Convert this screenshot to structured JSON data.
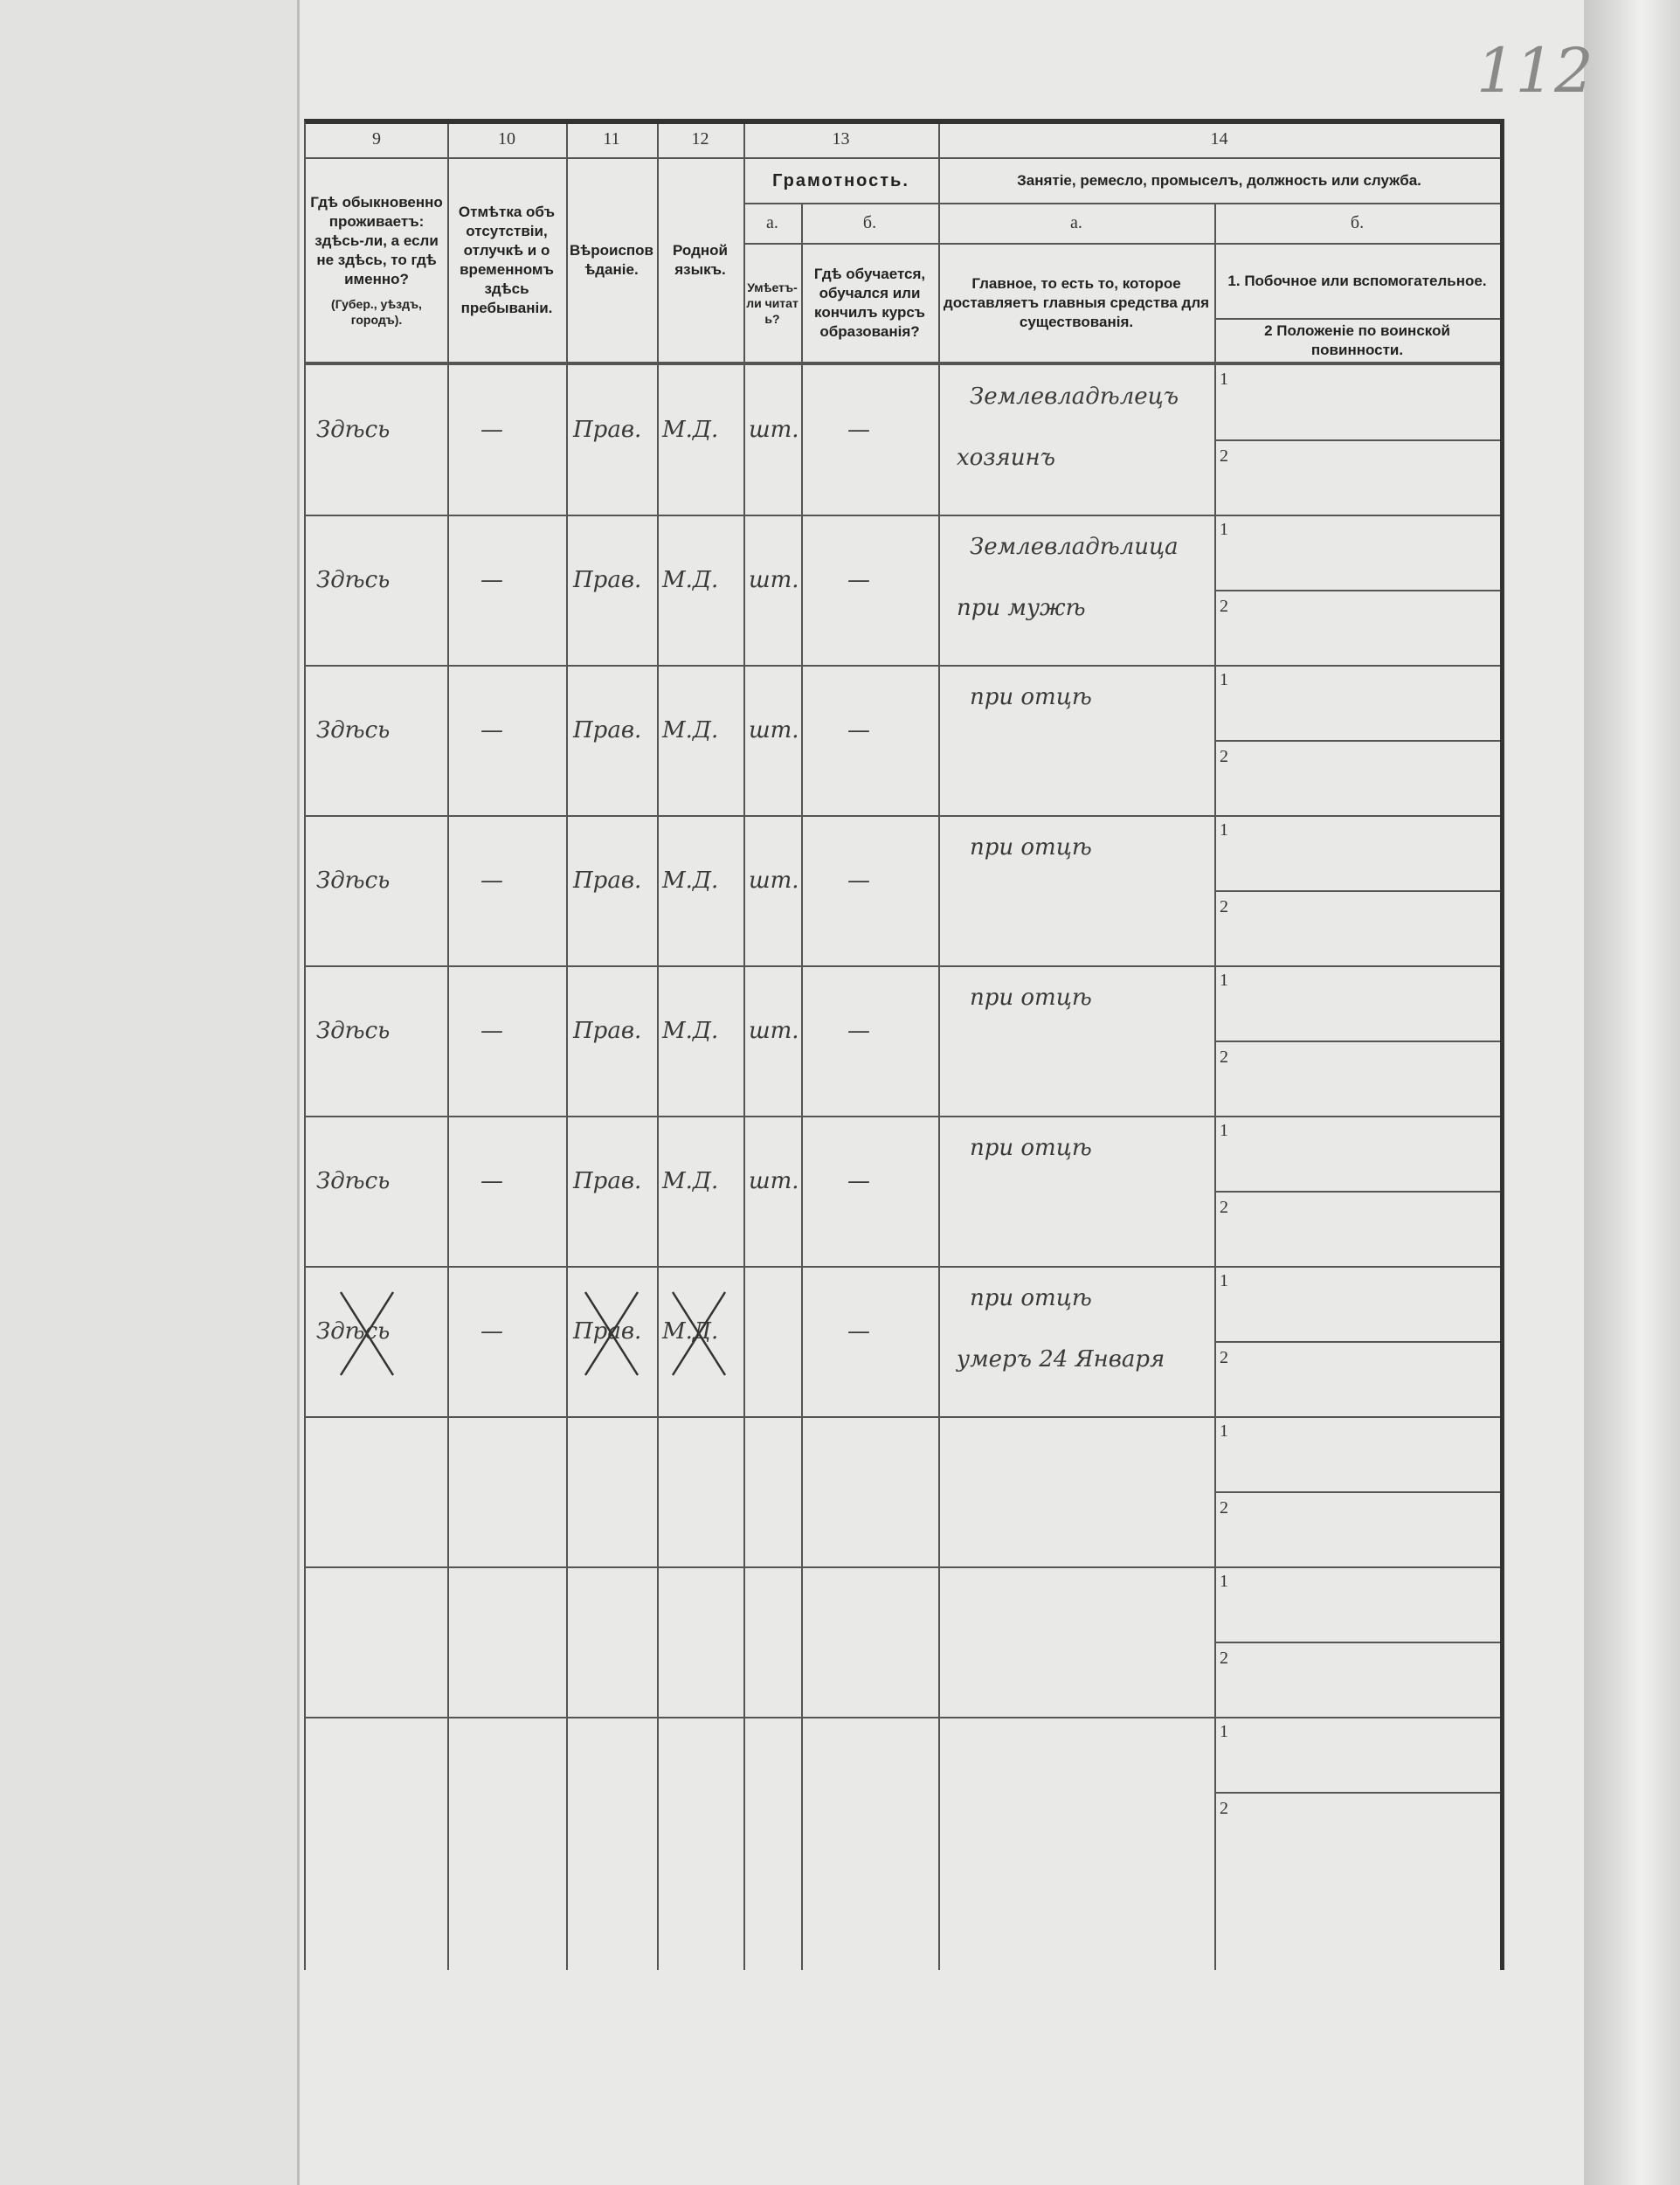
{
  "page_number": "112",
  "columns": {
    "c9": {
      "num": "9",
      "title": "Гдѣ обыкновенно проживаетъ: здѣсь-ли, а если не здѣсь, то гдѣ именно?",
      "note": "(Губер., уѣздъ, городъ)."
    },
    "c10": {
      "num": "10",
      "title": "Отмѣтка объ отсутствіи, отлучкѣ и о временномъ здѣсь пребываніи."
    },
    "c11": {
      "num": "11",
      "title": "Вѣроисповѣданіе."
    },
    "c12": {
      "num": "12",
      "title": "Родной языкъ."
    },
    "c13": {
      "num": "13",
      "title": "Грамотность.",
      "a": "а.",
      "a_title": "Умѣетъ-ли читать?",
      "b": "б.",
      "b_title": "Гдѣ обучается, обучался или кончилъ курсъ образованія?"
    },
    "c14": {
      "num": "14",
      "title": "Занятіе, ремесло, промыселъ, должность или служба.",
      "a": "а.",
      "a_title": "Главное, то есть то, которое доставляетъ главныя средства для существованія.",
      "b": "б.",
      "b1": "1. Побочное или вспомогательное.",
      "b2": "2  Положеніе по воинской повинности."
    }
  },
  "rows": [
    {
      "c9": "Здѣсь",
      "c10": "—",
      "c11": "Прав.",
      "c12": "М.Д.",
      "c13a": "шт.",
      "c13b": "—",
      "c14a": [
        "Землевладѣлецъ",
        "хозяинъ"
      ],
      "crossed": false
    },
    {
      "c9": "Здѣсь",
      "c10": "—",
      "c11": "Прав.",
      "c12": "М.Д.",
      "c13a": "шт.",
      "c13b": "—",
      "c14a": [
        "Землевладѣлица",
        "при мужѣ"
      ],
      "crossed": false
    },
    {
      "c9": "Здѣсь",
      "c10": "—",
      "c11": "Прав.",
      "c12": "М.Д.",
      "c13a": "шт.",
      "c13b": "—",
      "c14a": [
        "при отцѣ"
      ],
      "crossed": false
    },
    {
      "c9": "Здѣсь",
      "c10": "—",
      "c11": "Прав.",
      "c12": "М.Д.",
      "c13a": "шт.",
      "c13b": "—",
      "c14a": [
        "при отцѣ"
      ],
      "crossed": false
    },
    {
      "c9": "Здѣсь",
      "c10": "—",
      "c11": "Прав.",
      "c12": "М.Д.",
      "c13a": "шт.",
      "c13b": "—",
      "c14a": [
        "при отцѣ"
      ],
      "crossed": false
    },
    {
      "c9": "Здѣсь",
      "c10": "—",
      "c11": "Прав.",
      "c12": "М.Д.",
      "c13a": "шт.",
      "c13b": "—",
      "c14a": [
        "при отцѣ"
      ],
      "crossed": false
    },
    {
      "c9": "Здѣсь",
      "c10": "—",
      "c11": "Прав.",
      "c12": "М.Д.",
      "c13a": "",
      "c13b": "—",
      "c14a": [
        "при отцѣ",
        "умеръ 24 Января"
      ],
      "crossed": true
    },
    {
      "c9": "",
      "c10": "",
      "c11": "",
      "c12": "",
      "c13a": "",
      "c13b": "",
      "c14a": [],
      "crossed": false
    },
    {
      "c9": "",
      "c10": "",
      "c11": "",
      "c12": "",
      "c13a": "",
      "c13b": "",
      "c14a": [],
      "crossed": false
    },
    {
      "c9": "",
      "c10": "",
      "c11": "",
      "c12": "",
      "c13a": "",
      "c13b": "",
      "c14a": [],
      "crossed": false
    }
  ],
  "sub_labels": [
    "1",
    "2"
  ]
}
